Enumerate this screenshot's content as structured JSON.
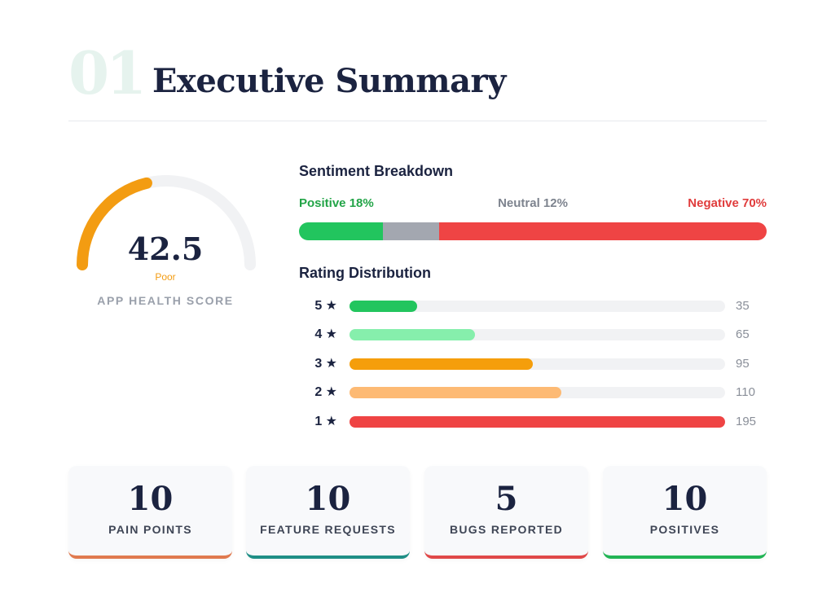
{
  "header": {
    "number": "01",
    "title": "Executive Summary"
  },
  "health": {
    "score": "42.5",
    "score_value": 42.5,
    "status": "Poor",
    "caption": "APP HEALTH SCORE",
    "color": "#f39c12",
    "track_color": "#f1f2f4"
  },
  "sentiment": {
    "title": "Sentiment Breakdown",
    "positive_label": "Positive 18%",
    "neutral_label": "Neutral 12%",
    "negative_label": "Negative 70%",
    "segments": [
      {
        "name": "positive",
        "percent": 18,
        "color": "#22c55e"
      },
      {
        "name": "neutral",
        "percent": 12,
        "color": "#a3a7b0"
      },
      {
        "name": "negative",
        "percent": 70,
        "color": "#ef4444"
      }
    ]
  },
  "ratings": {
    "title": "Rating Distribution",
    "max": 195,
    "rows": [
      {
        "stars": "5 ★",
        "count": "35",
        "value": 35,
        "color": "#22c55e"
      },
      {
        "stars": "4 ★",
        "count": "65",
        "value": 65,
        "color": "#86efac"
      },
      {
        "stars": "3 ★",
        "count": "95",
        "value": 95,
        "color": "#f59e0b"
      },
      {
        "stars": "2 ★",
        "count": "110",
        "value": 110,
        "color": "#fdba74"
      },
      {
        "stars": "1 ★",
        "count": "195",
        "value": 195,
        "color": "#ef4444"
      }
    ]
  },
  "cards": [
    {
      "number": "10",
      "label": "PAIN POINTS",
      "accent": "#e07a4f"
    },
    {
      "number": "10",
      "label": "FEATURE REQUESTS",
      "accent": "#1f8f86"
    },
    {
      "number": "5",
      "label": "BUGS REPORTED",
      "accent": "#e04848"
    },
    {
      "number": "10",
      "label": "POSITIVES",
      "accent": "#22b455"
    }
  ]
}
